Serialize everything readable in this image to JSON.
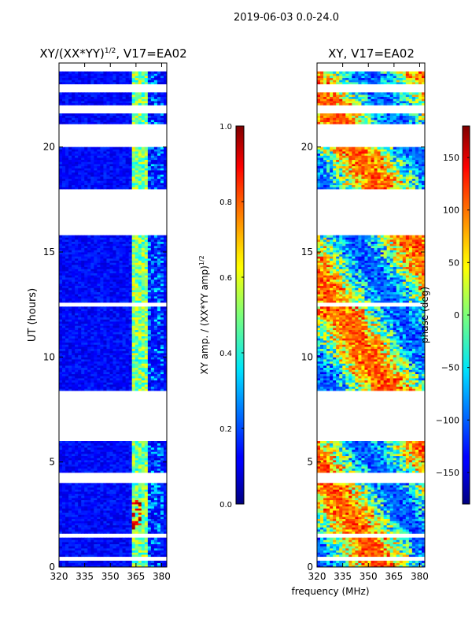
{
  "figure": {
    "suptitle": "2019-06-03 0.0-24.0",
    "xlabel": "frequency (MHz)"
  },
  "chart_data": [
    {
      "type": "heatmap",
      "title": "XY/(XX*YY)",
      "title_exp": "1/2",
      "title_suffix": ", V17=EA02",
      "ylabel": "UT (hours)",
      "xlim": [
        320,
        383
      ],
      "ylim": [
        0,
        24
      ],
      "xticks": [
        "320",
        "335",
        "350",
        "365",
        "380"
      ],
      "yticks": [
        "0",
        "5",
        "10",
        "15",
        "20"
      ],
      "colorbar": {
        "label": "XY amp. / (XX*YY amp)",
        "label_exp": "1/2",
        "range": [
          0.0,
          1.0
        ],
        "ticks": [
          "0.0",
          "0.2",
          "0.4",
          "0.6",
          "0.8",
          "1.0"
        ]
      },
      "data_gaps_hours": [
        [
          0.3,
          0.5
        ],
        [
          1.4,
          1.6
        ],
        [
          4.0,
          4.5
        ],
        [
          6.0,
          8.4
        ],
        [
          12.4,
          12.6
        ],
        [
          15.8,
          18.0
        ],
        [
          20.0,
          21.1
        ],
        [
          21.6,
          22.0
        ],
        [
          22.6,
          23.0
        ],
        [
          23.6,
          24.0
        ]
      ],
      "bright_band_mhz": [
        362,
        372
      ]
    },
    {
      "type": "heatmap",
      "title": "XY, V17=EA02",
      "xlim": [
        320,
        383
      ],
      "ylim": [
        0,
        24
      ],
      "xticks": [
        "320",
        "335",
        "350",
        "365",
        "380"
      ],
      "yticks": [
        "0",
        "5",
        "10",
        "15",
        "20"
      ],
      "colorbar": {
        "label": "phase (deg)",
        "range": [
          -180,
          180
        ],
        "ticks": [
          "−150",
          "−100",
          "−50",
          "0",
          "50",
          "100",
          "150"
        ]
      },
      "data_gaps_hours": [
        [
          0.3,
          0.5
        ],
        [
          1.4,
          1.6
        ],
        [
          4.0,
          4.5
        ],
        [
          6.0,
          8.4
        ],
        [
          12.4,
          12.6
        ],
        [
          15.8,
          18.0
        ],
        [
          20.0,
          21.1
        ],
        [
          21.6,
          22.0
        ],
        [
          22.6,
          23.0
        ],
        [
          23.6,
          24.0
        ]
      ]
    }
  ]
}
